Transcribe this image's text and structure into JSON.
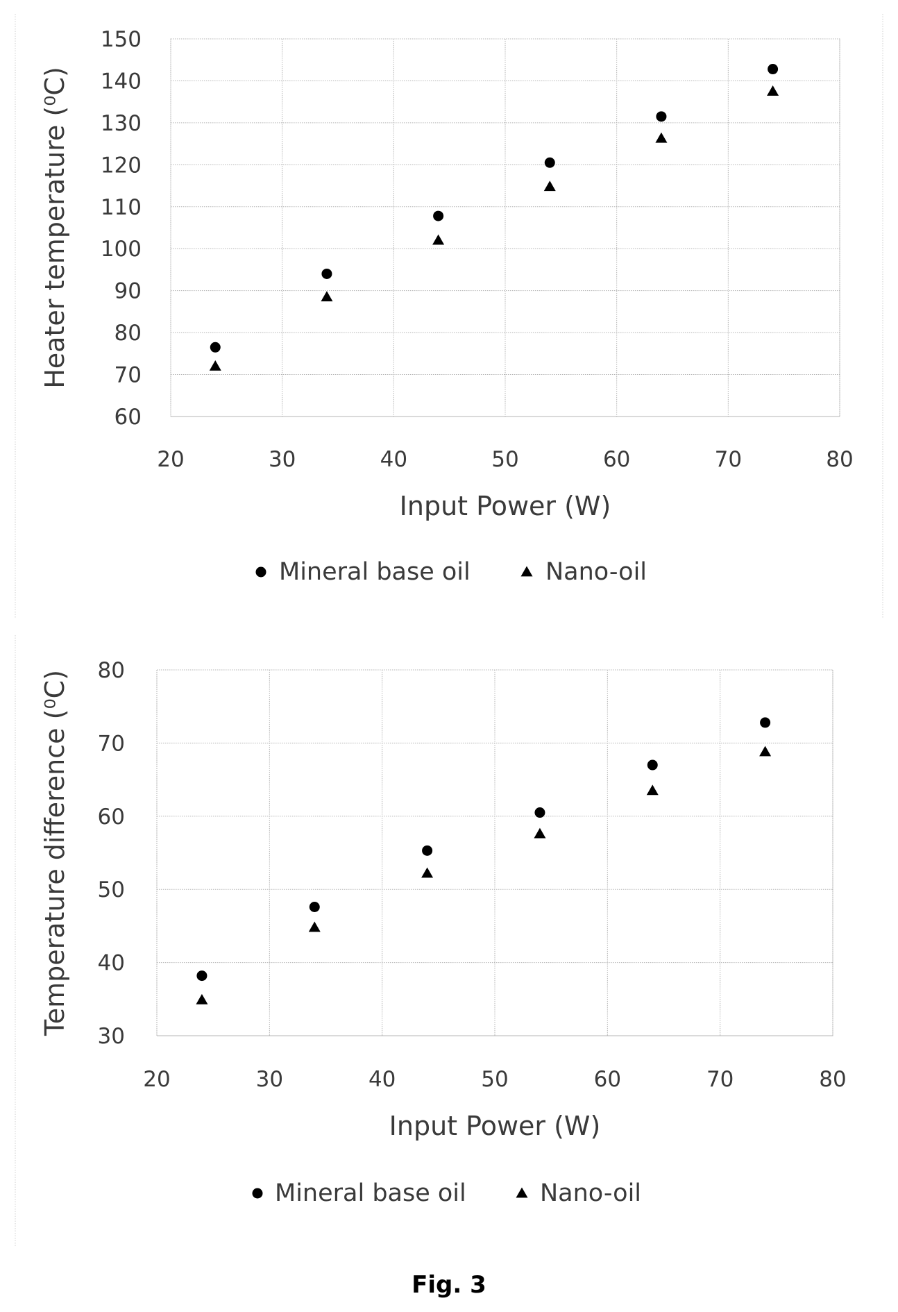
{
  "chart_data": [
    {
      "type": "scatter",
      "title": "",
      "xlabel": "Input Power (W)",
      "ylabel": "Heater temperature (⁰C)",
      "xlim": [
        20,
        80
      ],
      "ylim": [
        60,
        150
      ],
      "xticks": [
        "20",
        "30",
        "40",
        "50",
        "60",
        "70",
        "80"
      ],
      "yticks": [
        "60",
        "70",
        "80",
        "90",
        "100",
        "110",
        "120",
        "130",
        "140",
        "150"
      ],
      "grid": true,
      "legend": "bottom",
      "series": [
        {
          "name": "Mineral base oil",
          "marker": "circle",
          "x": [
            24,
            34,
            44,
            54,
            64,
            74
          ],
          "y": [
            76.5,
            94,
            107.8,
            120.5,
            131.5,
            142.8
          ]
        },
        {
          "name": "Nano-oil",
          "marker": "triangle",
          "x": [
            24,
            34,
            44,
            54,
            64,
            74
          ],
          "y": [
            72,
            88.5,
            102,
            114.8,
            126.3,
            137.5
          ]
        }
      ]
    },
    {
      "type": "scatter",
      "title": "",
      "xlabel": "Input Power (W)",
      "ylabel": "Temperature difference (⁰C)",
      "xlim": [
        20,
        80
      ],
      "ylim": [
        30,
        80
      ],
      "xticks": [
        "20",
        "30",
        "40",
        "50",
        "60",
        "70",
        "80"
      ],
      "yticks": [
        "30",
        "40",
        "50",
        "60",
        "70",
        "80"
      ],
      "grid": true,
      "legend": "bottom",
      "series": [
        {
          "name": "Mineral base oil",
          "marker": "circle",
          "x": [
            24,
            34,
            44,
            54,
            64,
            74
          ],
          "y": [
            38.2,
            47.6,
            55.3,
            60.5,
            67,
            72.8
          ]
        },
        {
          "name": "Nano-oil",
          "marker": "triangle",
          "x": [
            24,
            34,
            44,
            54,
            64,
            74
          ],
          "y": [
            34.9,
            44.8,
            52.2,
            57.6,
            63.5,
            68.8
          ]
        }
      ]
    }
  ],
  "caption": "Fig. 3",
  "colors": {
    "marker": "#000000",
    "text": "#3a3a3a",
    "grid": "#b4b4b4"
  }
}
